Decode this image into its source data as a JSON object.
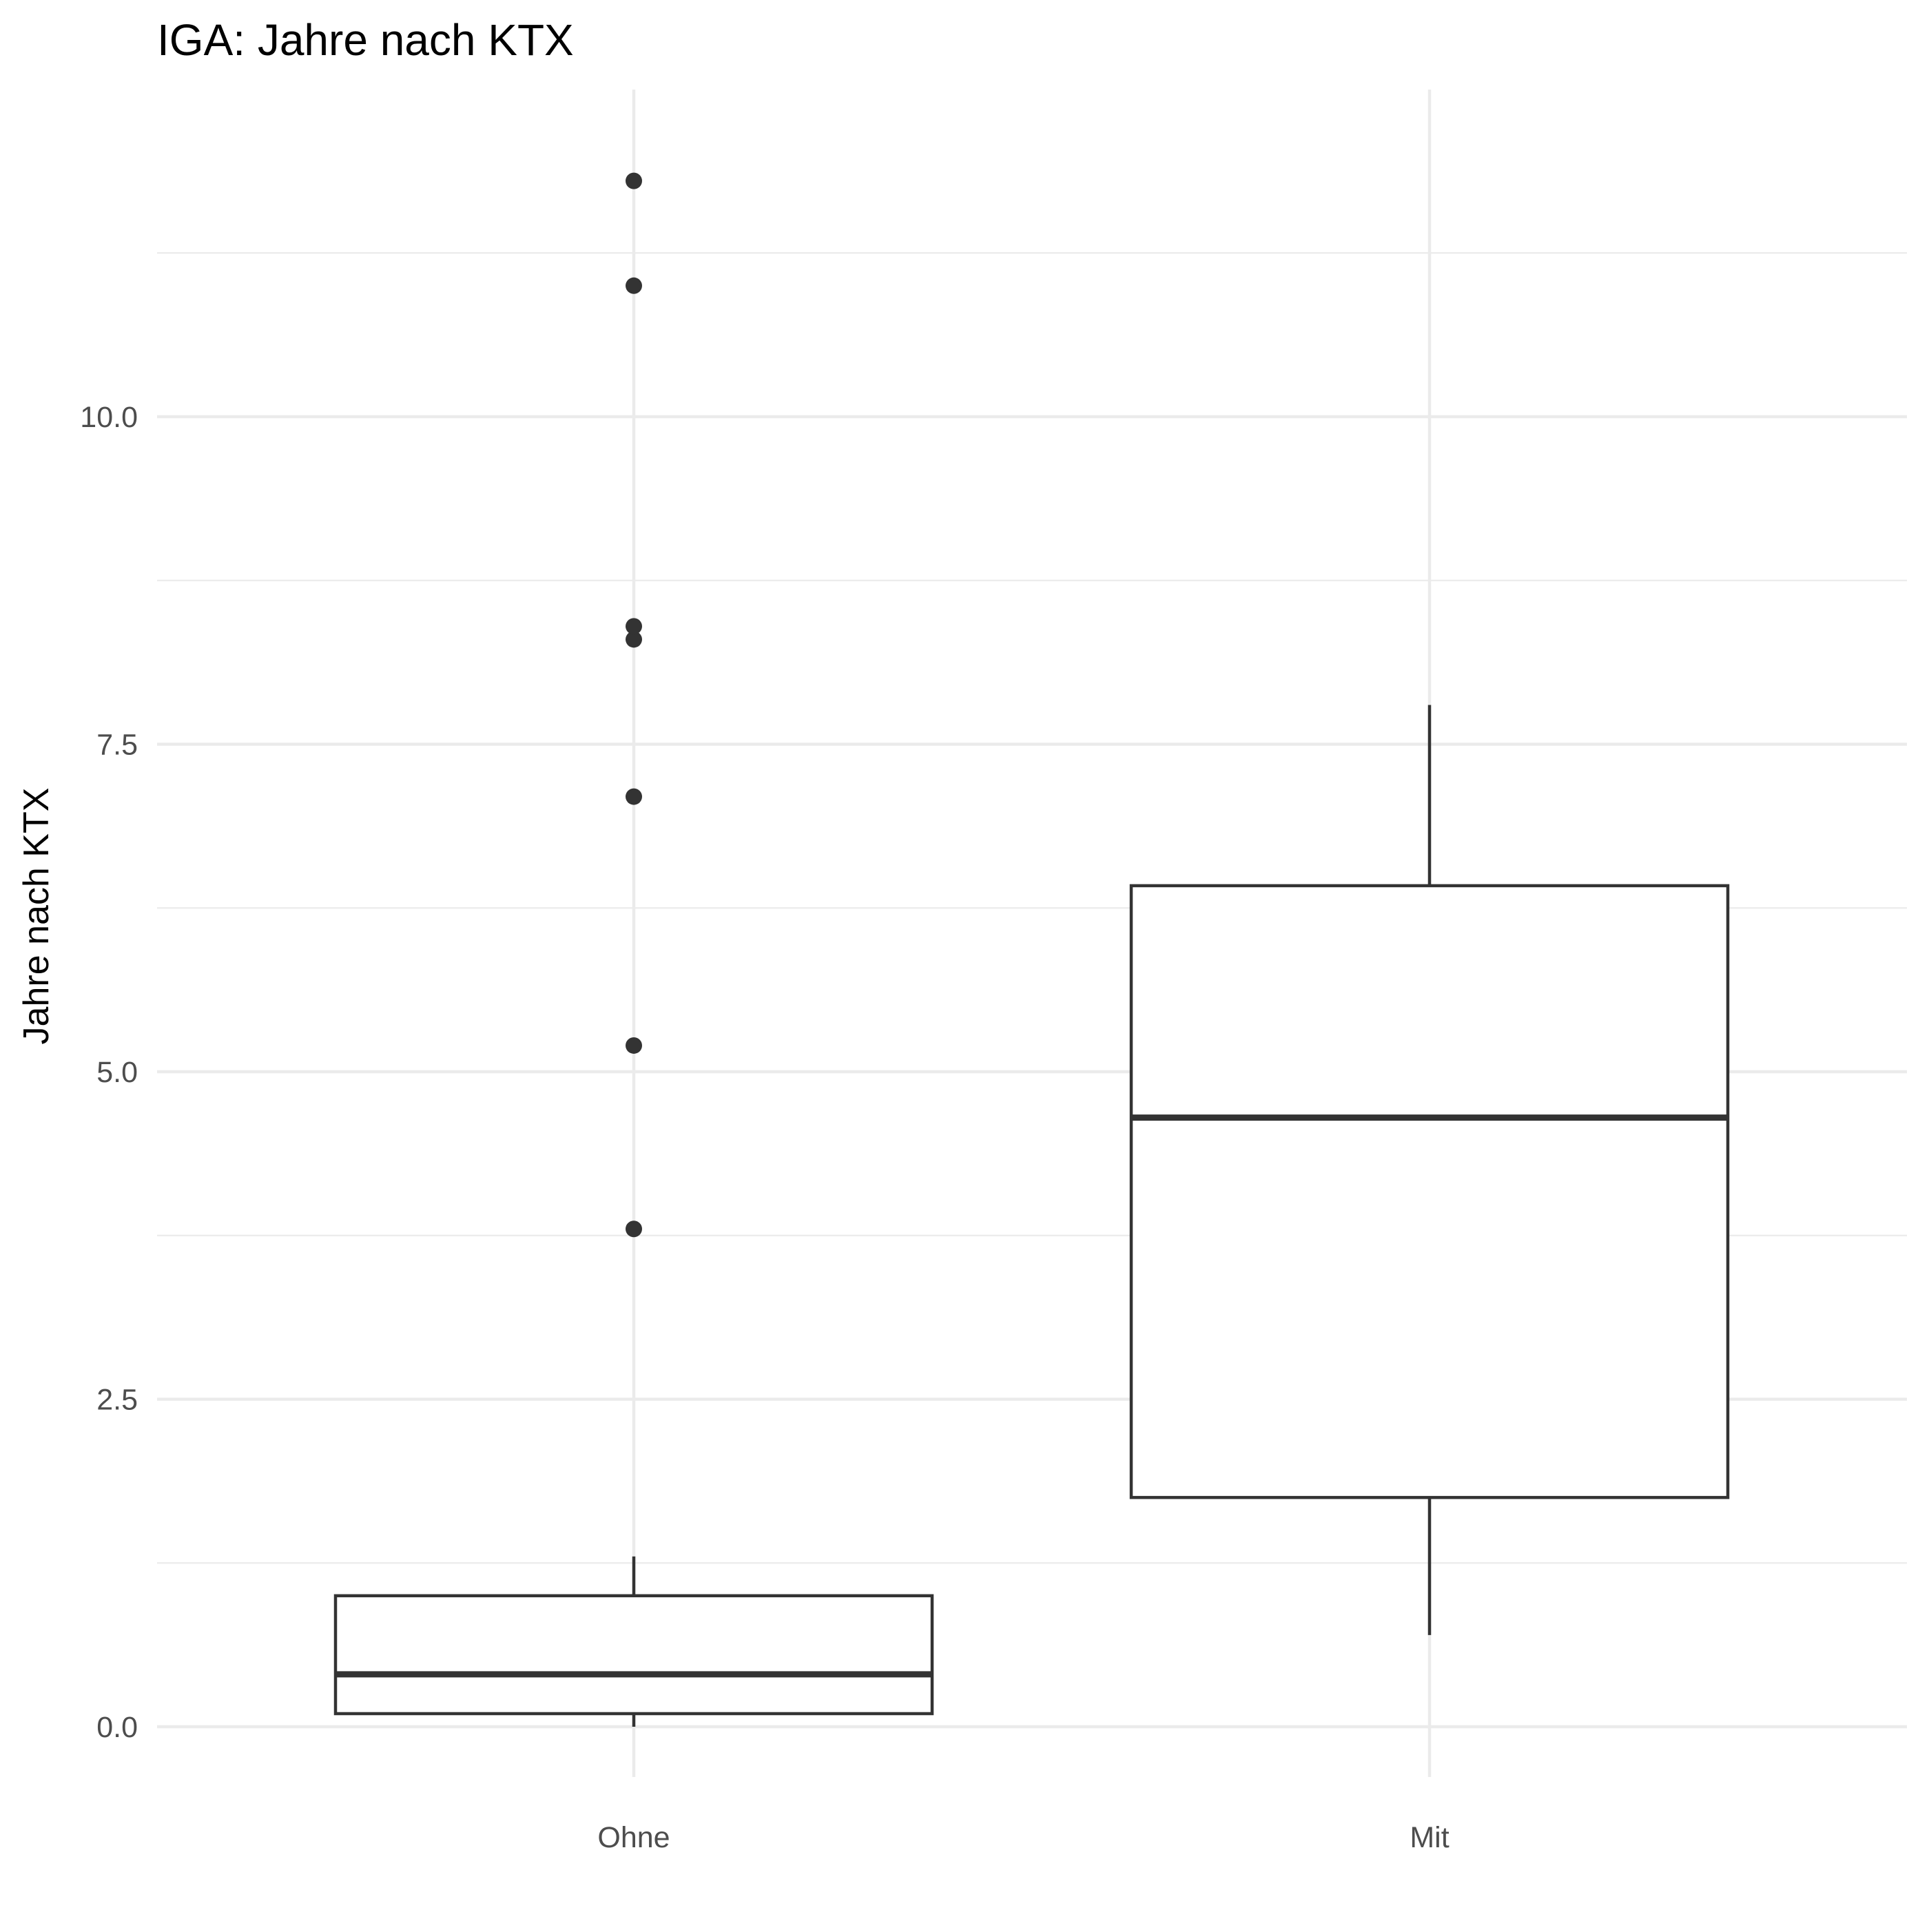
{
  "chart_data": {
    "type": "boxplot",
    "title": "IGA: Jahre nach KTX",
    "xlabel": "",
    "ylabel": "Jahre nach KTX",
    "categories": [
      "Ohne",
      "Mit"
    ],
    "y_ticks": [
      0.0,
      2.5,
      5.0,
      7.5,
      10.0
    ],
    "y_tick_labels": [
      "0.0",
      "2.5",
      "5.0",
      "7.5",
      "10.0"
    ],
    "y_minor_ticks": [
      1.25,
      3.75,
      6.25,
      8.75,
      11.25
    ],
    "ylim": [
      -0.6,
      12.6
    ],
    "grid": true,
    "boxes": [
      {
        "category": "Ohne",
        "whisker_low": 0.0,
        "q1": 0.1,
        "median": 0.4,
        "q3": 1.0,
        "whisker_high": 1.3,
        "outliers": [
          3.8,
          5.2,
          7.1,
          8.3,
          8.4,
          11.0,
          11.8
        ]
      },
      {
        "category": "Mit",
        "whisker_low": 0.7,
        "q1": 1.75,
        "median": 4.65,
        "q3": 6.42,
        "whisker_high": 7.8,
        "outliers": []
      }
    ],
    "colors": {
      "box_line": "#333333",
      "grid": "#ebebeb",
      "tick_text": "#4d4d4d",
      "text": "#000000",
      "background": "#ffffff"
    }
  }
}
